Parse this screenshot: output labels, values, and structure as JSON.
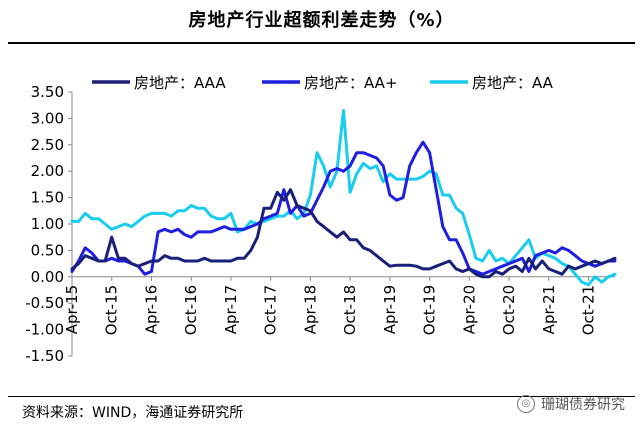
{
  "title": "房地产行业超额利差走势（%）",
  "source": "资料来源：WIND，海通证券研究所",
  "watermark": "珊瑚债券研究",
  "colors": {
    "AAA": "#1a1f7a",
    "AA+": "#1f1fe0",
    "AA": "#19cdf0"
  },
  "chart_data": {
    "type": "line",
    "title": "房地产行业超额利差走势（%）",
    "xlabel": "",
    "ylabel": "",
    "ylim": [
      -1.5,
      3.5
    ],
    "yticks": [
      "3.50",
      "3.00",
      "2.50",
      "2.00",
      "1.50",
      "1.00",
      "0.50",
      "0.00",
      "-0.50",
      "-1.00",
      "-1.50"
    ],
    "xlim": [
      0,
      82
    ],
    "xticks": [
      {
        "t": 0,
        "label": "Apr-15"
      },
      {
        "t": 6,
        "label": "Oct-15"
      },
      {
        "t": 12,
        "label": "Apr-16"
      },
      {
        "t": 18,
        "label": "Oct-16"
      },
      {
        "t": 24,
        "label": "Apr-17"
      },
      {
        "t": 30,
        "label": "Oct-17"
      },
      {
        "t": 36,
        "label": "Apr-18"
      },
      {
        "t": 42,
        "label": "Oct-18"
      },
      {
        "t": 48,
        "label": "Apr-19"
      },
      {
        "t": 54,
        "label": "Oct-19"
      },
      {
        "t": 60,
        "label": "Apr-20"
      },
      {
        "t": 66,
        "label": "Oct-20"
      },
      {
        "t": 72,
        "label": "Apr-21"
      },
      {
        "t": 78,
        "label": "Oct-21"
      }
    ],
    "series": [
      {
        "name": "房地产：AAA",
        "key": "AAA",
        "points": [
          [
            0,
            0.15
          ],
          [
            1,
            0.25
          ],
          [
            2,
            0.4
          ],
          [
            3,
            0.35
          ],
          [
            4,
            0.3
          ],
          [
            5,
            0.3
          ],
          [
            6,
            0.75
          ],
          [
            7,
            0.35
          ],
          [
            8,
            0.35
          ],
          [
            9,
            0.25
          ],
          [
            10,
            0.2
          ],
          [
            11,
            0.25
          ],
          [
            12,
            0.3
          ],
          [
            13,
            0.3
          ],
          [
            14,
            0.4
          ],
          [
            15,
            0.35
          ],
          [
            16,
            0.35
          ],
          [
            17,
            0.3
          ],
          [
            18,
            0.3
          ],
          [
            19,
            0.3
          ],
          [
            20,
            0.35
          ],
          [
            21,
            0.3
          ],
          [
            22,
            0.3
          ],
          [
            23,
            0.3
          ],
          [
            24,
            0.3
          ],
          [
            25,
            0.35
          ],
          [
            26,
            0.35
          ],
          [
            27,
            0.5
          ],
          [
            28,
            0.75
          ],
          [
            29,
            1.3
          ],
          [
            30,
            1.3
          ],
          [
            31,
            1.6
          ],
          [
            32,
            1.45
          ],
          [
            33,
            1.65
          ],
          [
            34,
            1.35
          ],
          [
            35,
            1.3
          ],
          [
            36,
            1.25
          ],
          [
            37,
            1.05
          ],
          [
            38,
            0.95
          ],
          [
            39,
            0.85
          ],
          [
            40,
            0.75
          ],
          [
            41,
            0.85
          ],
          [
            42,
            0.7
          ],
          [
            43,
            0.7
          ],
          [
            44,
            0.55
          ],
          [
            45,
            0.5
          ],
          [
            46,
            0.4
          ],
          [
            47,
            0.3
          ],
          [
            48,
            0.2
          ],
          [
            49,
            0.22
          ],
          [
            50,
            0.22
          ],
          [
            51,
            0.22
          ],
          [
            52,
            0.2
          ],
          [
            53,
            0.15
          ],
          [
            54,
            0.15
          ],
          [
            55,
            0.2
          ],
          [
            56,
            0.25
          ],
          [
            57,
            0.3
          ],
          [
            58,
            0.15
          ],
          [
            59,
            0.1
          ],
          [
            60,
            0.15
          ],
          [
            61,
            0.05
          ],
          [
            62,
            0.0
          ],
          [
            63,
            0.0
          ],
          [
            64,
            0.1
          ],
          [
            65,
            0.05
          ],
          [
            66,
            0.15
          ],
          [
            67,
            0.2
          ],
          [
            68,
            0.1
          ],
          [
            69,
            0.35
          ],
          [
            70,
            0.15
          ],
          [
            71,
            0.3
          ],
          [
            72,
            0.15
          ],
          [
            73,
            0.1
          ],
          [
            74,
            0.05
          ],
          [
            75,
            0.2
          ],
          [
            76,
            0.15
          ],
          [
            77,
            0.2
          ],
          [
            78,
            0.25
          ],
          [
            79,
            0.3
          ],
          [
            80,
            0.25
          ],
          [
            81,
            0.3
          ],
          [
            82,
            0.35
          ]
        ]
      },
      {
        "name": "房地产：AA+",
        "key": "AA+",
        "points": [
          [
            0,
            0.1
          ],
          [
            1,
            0.3
          ],
          [
            2,
            0.55
          ],
          [
            3,
            0.45
          ],
          [
            4,
            0.3
          ],
          [
            5,
            0.3
          ],
          [
            6,
            0.35
          ],
          [
            7,
            0.3
          ],
          [
            8,
            0.3
          ],
          [
            9,
            0.25
          ],
          [
            10,
            0.2
          ],
          [
            11,
            0.05
          ],
          [
            12,
            0.1
          ],
          [
            13,
            0.85
          ],
          [
            14,
            0.9
          ],
          [
            15,
            0.85
          ],
          [
            16,
            0.9
          ],
          [
            17,
            0.8
          ],
          [
            18,
            0.75
          ],
          [
            19,
            0.85
          ],
          [
            20,
            0.85
          ],
          [
            21,
            0.85
          ],
          [
            22,
            0.9
          ],
          [
            23,
            0.95
          ],
          [
            24,
            0.9
          ],
          [
            25,
            0.9
          ],
          [
            26,
            0.9
          ],
          [
            27,
            0.95
          ],
          [
            28,
            1.0
          ],
          [
            29,
            1.1
          ],
          [
            30,
            1.15
          ],
          [
            31,
            1.2
          ],
          [
            32,
            1.65
          ],
          [
            33,
            1.2
          ],
          [
            34,
            1.35
          ],
          [
            35,
            1.15
          ],
          [
            36,
            1.2
          ],
          [
            37,
            1.45
          ],
          [
            38,
            1.7
          ],
          [
            39,
            2.0
          ],
          [
            40,
            2.05
          ],
          [
            41,
            2.0
          ],
          [
            42,
            2.1
          ],
          [
            43,
            2.35
          ],
          [
            44,
            2.35
          ],
          [
            45,
            2.3
          ],
          [
            46,
            2.25
          ],
          [
            47,
            2.1
          ],
          [
            48,
            1.55
          ],
          [
            49,
            1.45
          ],
          [
            50,
            1.5
          ],
          [
            51,
            2.1
          ],
          [
            52,
            2.35
          ],
          [
            53,
            2.55
          ],
          [
            54,
            2.35
          ],
          [
            55,
            1.65
          ],
          [
            56,
            0.95
          ],
          [
            57,
            0.7
          ],
          [
            58,
            0.7
          ],
          [
            59,
            0.45
          ],
          [
            60,
            0.15
          ],
          [
            61,
            0.1
          ],
          [
            62,
            0.05
          ],
          [
            63,
            0.1
          ],
          [
            64,
            0.15
          ],
          [
            65,
            0.2
          ],
          [
            66,
            0.25
          ],
          [
            67,
            0.3
          ],
          [
            68,
            0.35
          ],
          [
            69,
            0.1
          ],
          [
            70,
            0.4
          ],
          [
            71,
            0.45
          ],
          [
            72,
            0.5
          ],
          [
            73,
            0.45
          ],
          [
            74,
            0.55
          ],
          [
            75,
            0.5
          ],
          [
            76,
            0.4
          ],
          [
            77,
            0.3
          ],
          [
            78,
            0.25
          ],
          [
            79,
            0.2
          ],
          [
            80,
            0.25
          ],
          [
            81,
            0.3
          ],
          [
            82,
            0.3
          ]
        ]
      },
      {
        "name": "房地产：AA",
        "key": "AA",
        "points": [
          [
            0,
            1.05
          ],
          [
            1,
            1.05
          ],
          [
            2,
            1.2
          ],
          [
            3,
            1.1
          ],
          [
            4,
            1.1
          ],
          [
            5,
            1.0
          ],
          [
            6,
            0.9
          ],
          [
            7,
            0.95
          ],
          [
            8,
            1.0
          ],
          [
            9,
            0.95
          ],
          [
            10,
            1.05
          ],
          [
            11,
            1.15
          ],
          [
            12,
            1.2
          ],
          [
            13,
            1.2
          ],
          [
            14,
            1.2
          ],
          [
            15,
            1.15
          ],
          [
            16,
            1.25
          ],
          [
            17,
            1.25
          ],
          [
            18,
            1.35
          ],
          [
            19,
            1.3
          ],
          [
            20,
            1.3
          ],
          [
            21,
            1.15
          ],
          [
            22,
            1.1
          ],
          [
            23,
            1.1
          ],
          [
            24,
            1.2
          ],
          [
            25,
            0.85
          ],
          [
            26,
            0.9
          ],
          [
            27,
            1.05
          ],
          [
            28,
            1.0
          ],
          [
            29,
            1.05
          ],
          [
            30,
            1.1
          ],
          [
            31,
            1.15
          ],
          [
            32,
            1.15
          ],
          [
            33,
            1.25
          ],
          [
            34,
            1.1
          ],
          [
            35,
            1.2
          ],
          [
            36,
            1.55
          ],
          [
            37,
            2.35
          ],
          [
            38,
            2.1
          ],
          [
            39,
            1.7
          ],
          [
            40,
            2.0
          ],
          [
            41,
            3.15
          ],
          [
            42,
            1.6
          ],
          [
            43,
            1.95
          ],
          [
            44,
            2.15
          ],
          [
            45,
            2.05
          ],
          [
            46,
            2.1
          ],
          [
            47,
            1.8
          ],
          [
            48,
            1.95
          ],
          [
            49,
            1.85
          ],
          [
            50,
            1.85
          ],
          [
            51,
            1.85
          ],
          [
            52,
            1.85
          ],
          [
            53,
            1.9
          ],
          [
            54,
            2.0
          ],
          [
            55,
            1.95
          ],
          [
            56,
            1.55
          ],
          [
            57,
            1.55
          ],
          [
            58,
            1.3
          ],
          [
            59,
            1.2
          ],
          [
            60,
            0.8
          ],
          [
            61,
            0.35
          ],
          [
            62,
            0.3
          ],
          [
            63,
            0.5
          ],
          [
            64,
            0.3
          ],
          [
            65,
            0.35
          ],
          [
            66,
            0.25
          ],
          [
            67,
            0.4
          ],
          [
            68,
            0.55
          ],
          [
            69,
            0.7
          ],
          [
            70,
            0.35
          ],
          [
            71,
            0.45
          ],
          [
            72,
            0.4
          ],
          [
            73,
            0.35
          ],
          [
            74,
            0.25
          ],
          [
            75,
            0.2
          ],
          [
            76,
            0.05
          ],
          [
            77,
            -0.1
          ],
          [
            78,
            -0.15
          ],
          [
            79,
            0.0
          ],
          [
            80,
            -0.1
          ],
          [
            81,
            0.0
          ],
          [
            82,
            0.05
          ]
        ]
      }
    ]
  }
}
